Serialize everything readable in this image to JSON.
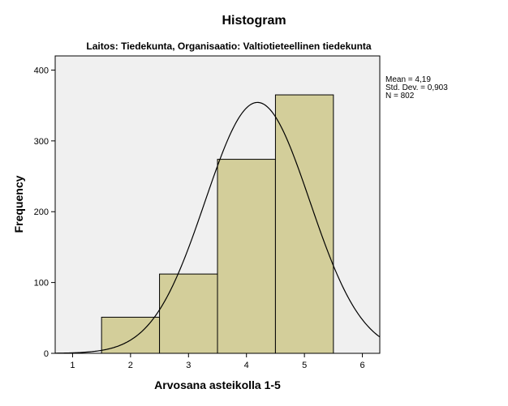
{
  "chart_data": {
    "type": "bar",
    "title": "Histogram",
    "subtitle": "Laitos: Tiedekunta, Organisaatio: Valtiotieteellinen tiedekunta",
    "xlabel": "Arvosana asteikolla 1-5",
    "ylabel": "Frequency",
    "xlim": [
      0.7,
      6.3
    ],
    "ylim": [
      0,
      420
    ],
    "x_ticks": [
      "1",
      "2",
      "3",
      "4",
      "5",
      "6"
    ],
    "y_ticks": [
      "0",
      "100",
      "200",
      "300",
      "400"
    ],
    "bin_width": 1,
    "bins": [
      {
        "center": 2,
        "value": 51
      },
      {
        "center": 3,
        "value": 112
      },
      {
        "center": 4,
        "value": 274
      },
      {
        "center": 5,
        "value": 365
      }
    ],
    "normal_curve": {
      "mean": 4.19,
      "sd": 0.903,
      "n": 802
    },
    "stats": [
      "Mean = 4,19",
      "Std. Dev. = 0,903",
      "N = 802"
    ],
    "grid": false,
    "colors": {
      "bar_fill": "#D3CE9A",
      "bar_stroke": "#000000",
      "plot_background": "#F0F0F0",
      "curve": "#000000"
    }
  }
}
